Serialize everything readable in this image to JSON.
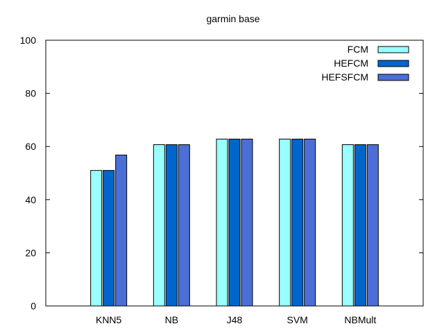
{
  "chart_data": {
    "type": "bar",
    "title": "garmin base",
    "xlabel": "",
    "ylabel": "",
    "categories": [
      "KNN5",
      "NB",
      "J48",
      "SVM",
      "NBMult"
    ],
    "series": [
      {
        "name": "FCM",
        "color": "#99ffff",
        "values": [
          51,
          60.7,
          62.8,
          62.8,
          60.7
        ]
      },
      {
        "name": "HEFCM",
        "color": "#0066cc",
        "values": [
          51,
          60.7,
          62.8,
          62.8,
          60.7
        ]
      },
      {
        "name": "HEFSFCM",
        "color": "#4b6fd6",
        "values": [
          56.8,
          60.7,
          62.8,
          62.8,
          60.7
        ]
      }
    ],
    "ylim": [
      0,
      100
    ],
    "yticks": [
      "0",
      "20",
      "40",
      "60",
      "80",
      "100"
    ],
    "grid": false,
    "legend": "top-right"
  }
}
